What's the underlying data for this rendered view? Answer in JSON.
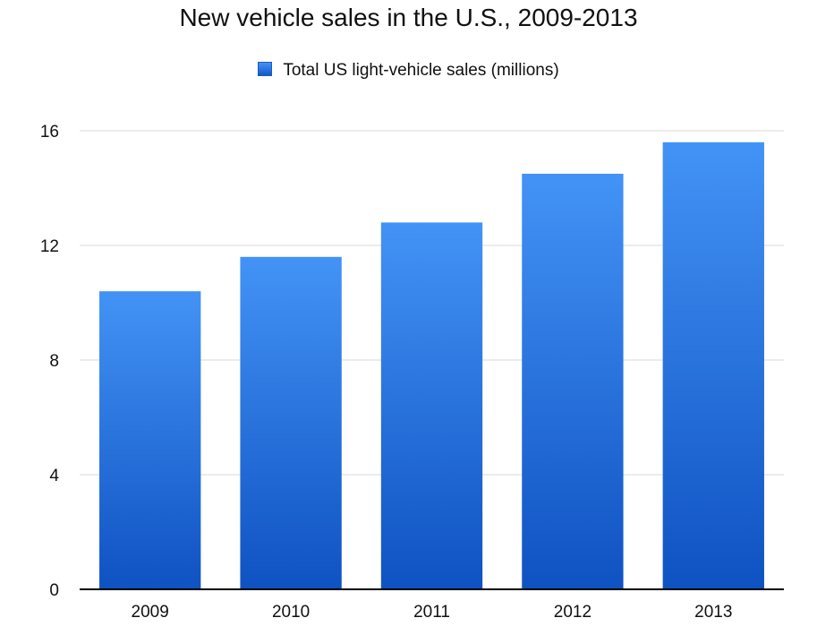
{
  "chart_data": {
    "type": "bar",
    "title": "New vehicle sales in the U.S., 2009-2013",
    "categories": [
      "2009",
      "2010",
      "2011",
      "2012",
      "2013"
    ],
    "series": [
      {
        "name": "Total US light-vehicle sales (millions)",
        "values": [
          10.4,
          11.6,
          12.8,
          14.5,
          15.6
        ]
      }
    ],
    "ylim": [
      0,
      16
    ],
    "yticks": [
      0,
      4,
      8,
      12,
      16
    ],
    "xlabel": "",
    "ylabel": "",
    "grid": true,
    "legend_position": "top-center",
    "colors": {
      "bar_top": "#4393f6",
      "bar_bottom": "#0f52c2",
      "grid": "#d9d9d9",
      "axis": "#000000"
    }
  }
}
